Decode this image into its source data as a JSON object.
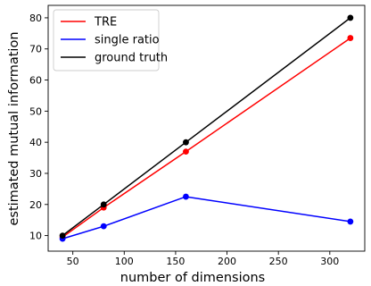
{
  "chart_data": {
    "type": "line",
    "xlabel": "number of dimensions",
    "ylabel": "estimated mutual information",
    "xlim": [
      26,
      334
    ],
    "ylim": [
      5,
      84
    ],
    "x_ticks": [
      50,
      100,
      150,
      200,
      250,
      300
    ],
    "y_ticks": [
      10,
      20,
      30,
      40,
      50,
      60,
      70,
      80
    ],
    "grid": false,
    "legend_position": "top-left",
    "x": [
      40,
      80,
      160,
      320
    ],
    "series": [
      {
        "name": "TRE",
        "color": "#ff0000",
        "values": [
          9.5,
          19,
          37,
          73.5
        ]
      },
      {
        "name": "single ratio",
        "color": "#0000ff",
        "values": [
          9,
          13,
          22.5,
          14.5
        ]
      },
      {
        "name": "ground truth",
        "color": "#000000",
        "values": [
          10,
          20,
          40,
          80
        ]
      }
    ]
  }
}
